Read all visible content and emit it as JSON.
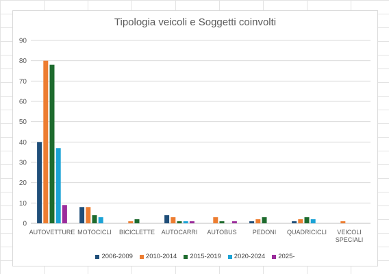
{
  "chart_data": {
    "type": "bar",
    "title": "Tipologia veicoli e Soggetti coinvolti",
    "categories": [
      "AUTOVETTURE",
      "MOTOCICLI",
      "BICICLETTE",
      "AUTOCARRI",
      "AUTOBUS",
      "PEDONI",
      "QUADRICICLI",
      "VEICOLI SPECIALI"
    ],
    "series": [
      {
        "name": "2006-2009",
        "color": "#1f4e79",
        "values": [
          40,
          8,
          0,
          4,
          0,
          1,
          1,
          0
        ]
      },
      {
        "name": "2010-2014",
        "color": "#ed7d31",
        "values": [
          80,
          8,
          1,
          3,
          3,
          2,
          2,
          1
        ]
      },
      {
        "name": "2015-2019",
        "color": "#1e6b2e",
        "values": [
          78,
          4,
          2,
          1,
          1,
          3,
          3,
          0
        ]
      },
      {
        "name": "2020-2024",
        "color": "#1ba3d6",
        "values": [
          37,
          3,
          0,
          1,
          0,
          0,
          2,
          0
        ]
      },
      {
        "name": "2025-",
        "color": "#9b2c9b",
        "values": [
          9,
          0,
          0,
          1,
          1,
          0,
          0,
          0
        ]
      }
    ],
    "ylim": [
      0,
      90
    ],
    "yticks": [
      0,
      10,
      20,
      30,
      40,
      50,
      60,
      70,
      80,
      90
    ],
    "grid": true,
    "legend": "bottom"
  }
}
